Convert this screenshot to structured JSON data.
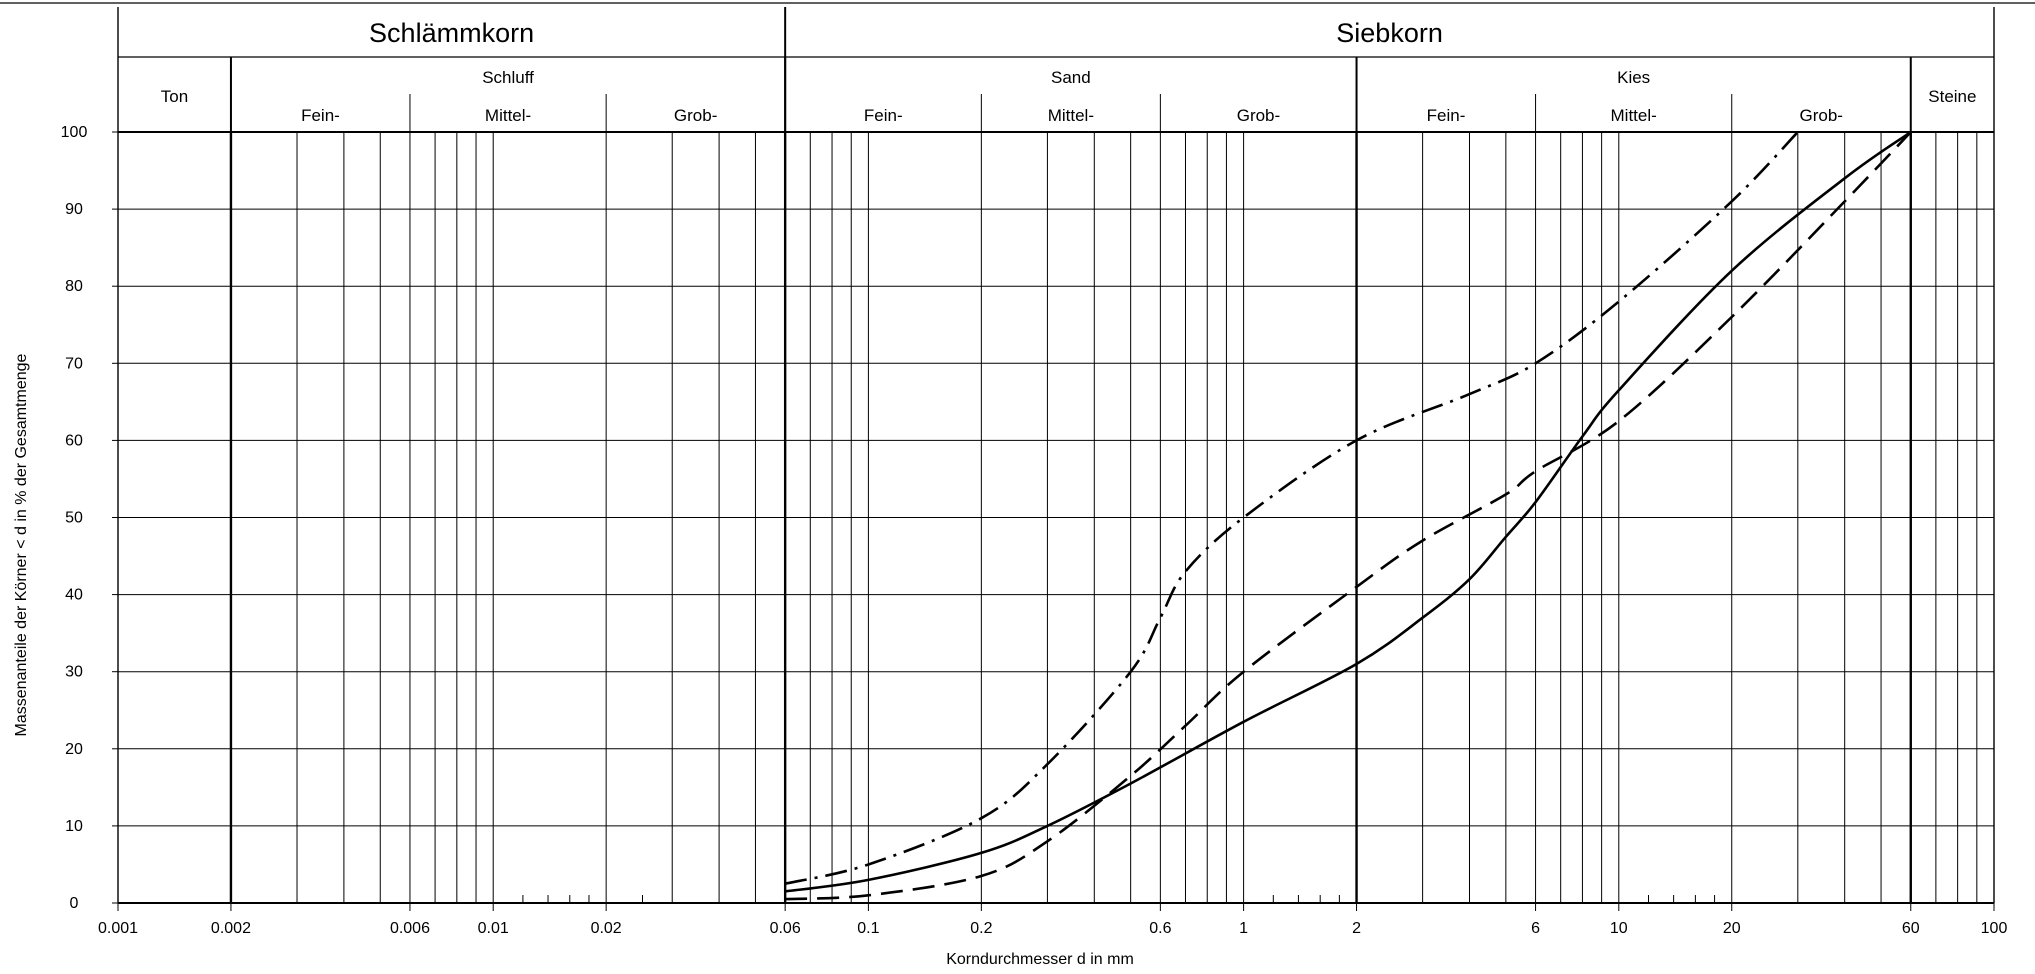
{
  "chart_data": {
    "type": "line",
    "title": "",
    "xlabel": "Korndurchmesser d in mm",
    "ylabel": "Massenanteile der Körner < d in % der Gesamtmenge",
    "xscale": "log",
    "xlim": [
      0.001,
      100
    ],
    "ylim": [
      0,
      100
    ],
    "grid": true,
    "x_tick_labels": [
      {
        "value": 0.001,
        "label": "0.001"
      },
      {
        "value": 0.002,
        "label": "0.002"
      },
      {
        "value": 0.006,
        "label": "0.006"
      },
      {
        "value": 0.01,
        "label": "0.01"
      },
      {
        "value": 0.02,
        "label": "0.02"
      },
      {
        "value": 0.06,
        "label": "0.06"
      },
      {
        "value": 0.1,
        "label": "0.1"
      },
      {
        "value": 0.2,
        "label": "0.2"
      },
      {
        "value": 0.6,
        "label": "0.6"
      },
      {
        "value": 1,
        "label": "1"
      },
      {
        "value": 2,
        "label": "2"
      },
      {
        "value": 6,
        "label": "6"
      },
      {
        "value": 10,
        "label": "10"
      },
      {
        "value": 20,
        "label": "20"
      },
      {
        "value": 60,
        "label": "60"
      },
      {
        "value": 100,
        "label": "100"
      }
    ],
    "y_tick_labels": [
      "0",
      "10",
      "20",
      "30",
      "40",
      "50",
      "60",
      "70",
      "80",
      "90",
      "100"
    ],
    "minor_gridlines_x": [
      0.003,
      0.004,
      0.005,
      0.007,
      0.008,
      0.009,
      0.03,
      0.04,
      0.05,
      0.07,
      0.08,
      0.09,
      0.3,
      0.4,
      0.5,
      0.7,
      0.8,
      0.9,
      3,
      4,
      5,
      7,
      8,
      9,
      30,
      40,
      50,
      70,
      80,
      90
    ],
    "major_boundaries_x": [
      0.002,
      0.06,
      2,
      60
    ],
    "header": {
      "groups": [
        {
          "label": "Schlämmkorn",
          "from": 0.001,
          "to": 0.06
        },
        {
          "label": "Siebkorn",
          "from": 0.06,
          "to": 100
        }
      ],
      "fractions": [
        {
          "label": "Ton",
          "from": 0.001,
          "to": 0.002
        },
        {
          "label": "Schluff",
          "from": 0.002,
          "to": 0.06
        },
        {
          "label": "Sand",
          "from": 0.06,
          "to": 2
        },
        {
          "label": "Kies",
          "from": 2,
          "to": 60
        },
        {
          "label": "Steine",
          "from": 60,
          "to": 100
        }
      ],
      "subfractions": [
        {
          "label": "Fein-",
          "from": 0.002,
          "to": 0.006
        },
        {
          "label": "Mittel-",
          "from": 0.006,
          "to": 0.02
        },
        {
          "label": "Grob-",
          "from": 0.02,
          "to": 0.06
        },
        {
          "label": "Fein-",
          "from": 0.06,
          "to": 0.2
        },
        {
          "label": "Mittel-",
          "from": 0.2,
          "to": 0.6
        },
        {
          "label": "Grob-",
          "from": 0.6,
          "to": 2
        },
        {
          "label": "Fein-",
          "from": 2,
          "to": 6
        },
        {
          "label": "Mittel-",
          "from": 6,
          "to": 20
        },
        {
          "label": "Grob-",
          "from": 20,
          "to": 60
        }
      ]
    },
    "series": [
      {
        "style": "solid",
        "x": [
          0.06,
          0.1,
          0.2,
          0.3,
          0.5,
          1,
          2,
          3,
          4,
          5,
          6,
          8,
          10,
          20,
          40,
          60
        ],
        "values": [
          1.5,
          3,
          6.5,
          10,
          15.5,
          23.5,
          31,
          37,
          42,
          47.5,
          52,
          60.5,
          66.5,
          82,
          94,
          100
        ]
      },
      {
        "style": "dashed",
        "x": [
          0.06,
          0.1,
          0.2,
          0.3,
          0.5,
          0.7,
          1,
          2,
          3,
          5,
          6,
          10,
          20,
          40,
          60
        ],
        "values": [
          0.5,
          1,
          3.5,
          8,
          16.5,
          23,
          30,
          41,
          47,
          53,
          56,
          62.5,
          76,
          91,
          100
        ]
      },
      {
        "style": "dashdot",
        "x": [
          0.06,
          0.1,
          0.2,
          0.3,
          0.5,
          0.6,
          0.7,
          1,
          2,
          4,
          6,
          10,
          20,
          30
        ],
        "values": [
          2.5,
          5,
          11,
          18,
          30,
          37,
          43,
          50,
          60,
          66,
          70,
          78,
          91,
          100
        ]
      }
    ]
  }
}
